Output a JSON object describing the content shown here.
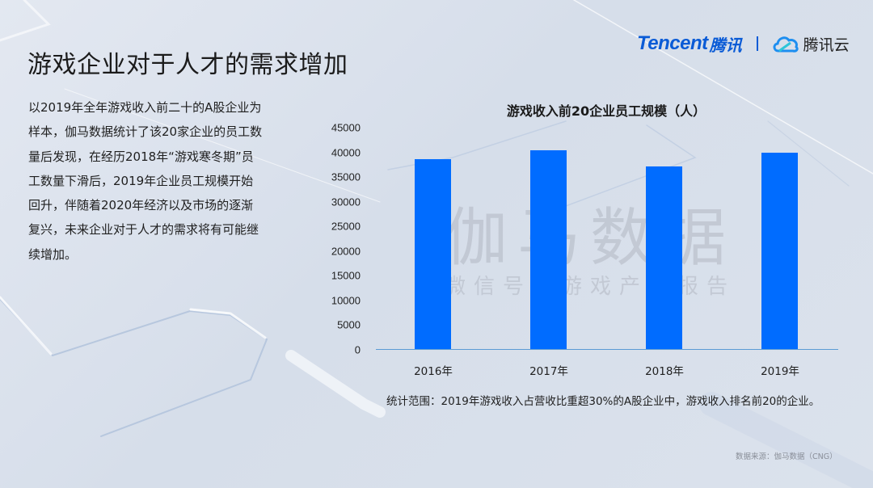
{
  "header": {
    "title": "游戏企业对于人才的需求增加",
    "logos": {
      "tencent_en": "Tencent",
      "tencent_cn": "腾讯",
      "cloud_icon": "tencent-cloud-icon",
      "cloud_text": "腾讯云"
    }
  },
  "description": "以2019年全年游戏收入前二十的A股企业为样本，伽马数据统计了该20家企业的员工数量后发现，在经历2018年“游戏寒冬期”员工数量下滑后，2019年企业员工规模开始回升，伴随着2020年经济以及市场的逐渐复兴，未来企业对于人才的需求将有可能继续增加。",
  "watermark": {
    "main": "伽马数据",
    "sub": "微信号：游戏产业报告"
  },
  "chart_data": {
    "type": "bar",
    "title": "游戏收入前20企业员工规模（人）",
    "categories": [
      "2016年",
      "2017年",
      "2018年",
      "2019年"
    ],
    "values": [
      38700,
      40400,
      37100,
      39900
    ],
    "xlabel": "",
    "ylabel": "",
    "ylim": [
      0,
      45000
    ],
    "yticks": [
      "0",
      "5000",
      "10000",
      "15000",
      "20000",
      "25000",
      "30000",
      "35000",
      "40000",
      "45000"
    ],
    "grid": false,
    "legend": "none",
    "bar_color": "#006cff",
    "axis_color": "#5b9bd5"
  },
  "footer": {
    "note": "统计范围：2019年游戏收入占营收比重超30%的A股企业中，游戏收入排名前20的企业。",
    "source": "数据来源：伽马数据（CNG）"
  }
}
